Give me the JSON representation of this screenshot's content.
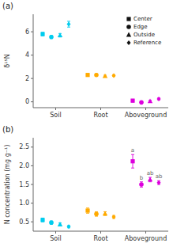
{
  "chart_data": [
    {
      "type": "scatter",
      "title": "(a)",
      "y_label": "δ¹⁵N",
      "categories": [
        "Soil",
        "Root",
        "Aboveground"
      ],
      "ylim": [
        -0.5,
        7.5
      ],
      "yticks": [
        0,
        2,
        4,
        6
      ],
      "grid": false,
      "legend": "upper right",
      "series": [
        {
          "name": "Center",
          "marker": "square",
          "color": "#111111",
          "colors": [
            "#00ccee",
            "#ffaa00",
            "#dd00dd"
          ],
          "values": [
            5.8,
            2.3,
            0.1
          ],
          "errors": [
            0.15,
            0.12,
            0.12
          ]
        },
        {
          "name": "Edge",
          "marker": "circle",
          "color": "#111111",
          "colors": [
            "#00ccee",
            "#ffaa00",
            "#dd00dd"
          ],
          "values": [
            5.55,
            2.3,
            -0.05
          ],
          "errors": [
            0.12,
            0.1,
            0.1
          ]
        },
        {
          "name": "Outside",
          "marker": "triangle",
          "color": "#111111",
          "colors": [
            "#00ccee",
            "#ffaa00",
            "#dd00dd"
          ],
          "values": [
            5.7,
            2.2,
            0.05
          ],
          "errors": [
            0.15,
            0.08,
            0.08
          ]
        },
        {
          "name": "Reference",
          "marker": "diamond",
          "color": "#111111",
          "colors": [
            "#00ccee",
            "#ffaa00",
            "#dd00dd"
          ],
          "values": [
            6.65,
            2.25,
            0.25
          ],
          "errors": [
            0.25,
            0.08,
            0.08
          ]
        }
      ]
    },
    {
      "type": "scatter",
      "title": "(b)",
      "y_label": "N concentration (mg g⁻¹)",
      "categories": [
        "Soil",
        "Root",
        "Aboveground"
      ],
      "ylim": [
        0.25,
        2.75
      ],
      "yticks": [
        0.5,
        {
          "value": 1,
          "label": "1.0"
        },
        1.5,
        {
          "value": 2,
          "label": "2.0"
        },
        2.5
      ],
      "grid": false,
      "series": [
        {
          "name": "Center",
          "marker": "square",
          "colors": [
            "#00ccee",
            "#ffaa00",
            "#dd00dd"
          ],
          "values": [
            0.55,
            0.8,
            2.12
          ],
          "errors": [
            0.05,
            0.07,
            0.18
          ]
        },
        {
          "name": "Edge",
          "marker": "circle",
          "colors": [
            "#00ccee",
            "#ffaa00",
            "#dd00dd"
          ],
          "values": [
            0.48,
            0.71,
            1.5
          ],
          "errors": [
            0.04,
            0.06,
            0.07
          ]
        },
        {
          "name": "Outside",
          "marker": "triangle",
          "colors": [
            "#00ccee",
            "#ffaa00",
            "#dd00dd"
          ],
          "values": [
            0.43,
            0.72,
            1.63
          ],
          "errors": [
            0.04,
            0.05,
            0.06
          ]
        },
        {
          "name": "Reference",
          "marker": "diamond",
          "colors": [
            "#00ccee",
            "#ffaa00",
            "#dd00dd"
          ],
          "values": [
            0.37,
            0.63,
            1.55
          ],
          "errors": [
            0.03,
            0.04,
            0.05
          ]
        }
      ],
      "annotations": [
        {
          "text": "a",
          "series": "Center",
          "category": "Aboveground"
        },
        {
          "text": "b",
          "series": "Edge",
          "category": "Aboveground"
        },
        {
          "text": "ab",
          "series": "Outside",
          "category": "Aboveground"
        },
        {
          "text": "ab",
          "series": "Reference",
          "category": "Aboveground"
        }
      ]
    }
  ]
}
